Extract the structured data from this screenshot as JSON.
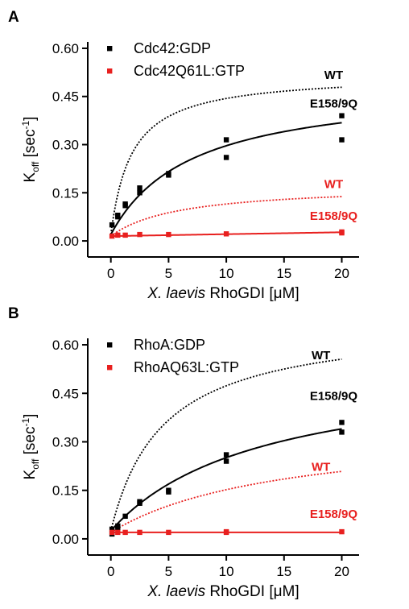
{
  "chart_data": [
    {
      "type": "scatter",
      "panel_label": "A",
      "xlabel_italic": "X. laevis",
      "xlabel_rest": " RhoGDI [",
      "xlabel_unit": "μM",
      "xlabel_close": "]",
      "ylabel_main": "K",
      "ylabel_sub": "off",
      "ylabel_unit_open": " [sec",
      "ylabel_sup": "-1",
      "ylabel_unit_close": "]",
      "xlim": [
        -2,
        21.5
      ],
      "ylim": [
        -0.05,
        0.62
      ],
      "x_ticks": [
        0,
        5,
        10,
        15,
        20
      ],
      "x_tick_labels": [
        "0",
        "5",
        "10",
        "15",
        "20"
      ],
      "y_ticks": [
        0,
        0.15,
        0.3,
        0.45,
        0.6
      ],
      "y_tick_labels": [
        "0.00",
        "0.15",
        "0.30",
        "0.45",
        "0.60"
      ],
      "legend_position": "top-left",
      "series": [
        {
          "name": "Cdc42:GDP",
          "color": "#000000",
          "points": [
            [
              0.1,
              0.05
            ],
            [
              0.6,
              0.075
            ],
            [
              0.6,
              0.08
            ],
            [
              1.25,
              0.11
            ],
            [
              1.25,
              0.115
            ],
            [
              2.5,
              0.15
            ],
            [
              2.5,
              0.165
            ],
            [
              5,
              0.205
            ],
            [
              5,
              0.21
            ],
            [
              10,
              0.26
            ],
            [
              10,
              0.315
            ],
            [
              20,
              0.315
            ],
            [
              20,
              0.39
            ]
          ],
          "fit_e158_9q": {
            "base": 0.02,
            "amp": 0.47,
            "k": 7.0
          },
          "fit_wt": {
            "base": 0.02,
            "amp": 0.5,
            "k": 1.8
          }
        },
        {
          "name": "Cdc42Q61L:GTP",
          "color": "#e8201f",
          "points": [
            [
              0.1,
              0.015
            ],
            [
              0.6,
              0.018
            ],
            [
              1.25,
              0.018
            ],
            [
              2.5,
              0.02
            ],
            [
              5,
              0.02
            ],
            [
              10,
              0.022
            ],
            [
              20,
              0.025
            ],
            [
              20,
              0.028
            ]
          ],
          "fit_e158_9q": {
            "base": 0.015,
            "amp": 0.012,
            "k": 0
          },
          "fit_wt": {
            "base": 0.015,
            "amp": 0.16,
            "k": 6.0
          }
        }
      ],
      "annotations": [
        {
          "text": "WT",
          "color": "#000000",
          "x": 19.3,
          "y": 0.505
        },
        {
          "text": "E158/9Q",
          "color": "#000000",
          "x": 19.3,
          "y": 0.415
        },
        {
          "text": "WT",
          "color": "#e8201f",
          "x": 19.3,
          "y": 0.165
        },
        {
          "text": "E158/9Q",
          "color": "#e8201f",
          "x": 19.3,
          "y": 0.065
        }
      ]
    },
    {
      "type": "scatter",
      "panel_label": "B",
      "xlabel_italic": "X. laevis",
      "xlabel_rest": " RhoGDI [",
      "xlabel_unit": "μM",
      "xlabel_close": "]",
      "ylabel_main": "K",
      "ylabel_sub": "off",
      "ylabel_unit_open": " [sec",
      "ylabel_sup": "-1",
      "ylabel_unit_close": "]",
      "xlim": [
        -2,
        21.5
      ],
      "ylim": [
        -0.05,
        0.62
      ],
      "x_ticks": [
        0,
        5,
        10,
        15,
        20
      ],
      "x_tick_labels": [
        "0",
        "5",
        "10",
        "15",
        "20"
      ],
      "y_ticks": [
        0,
        0.15,
        0.3,
        0.45,
        0.6
      ],
      "y_tick_labels": [
        "0.00",
        "0.15",
        "0.30",
        "0.45",
        "0.60"
      ],
      "legend_position": "top-left",
      "series": [
        {
          "name": "RhoA:GDP",
          "color": "#000000",
          "points": [
            [
              0.1,
              0.015
            ],
            [
              0.1,
              0.03
            ],
            [
              0.6,
              0.035
            ],
            [
              0.6,
              0.04
            ],
            [
              1.25,
              0.07
            ],
            [
              2.5,
              0.11
            ],
            [
              2.5,
              0.115
            ],
            [
              5,
              0.145
            ],
            [
              5,
              0.15
            ],
            [
              10,
              0.24
            ],
            [
              10,
              0.26
            ],
            [
              20,
              0.33
            ],
            [
              20,
              0.36
            ]
          ],
          "fit_e158_9q": {
            "base": 0.025,
            "amp": 0.52,
            "k": 13.0
          },
          "fit_wt": {
            "base": 0.025,
            "amp": 0.65,
            "k": 4.5
          }
        },
        {
          "name": "RhoAQ63L:GTP",
          "color": "#e8201f",
          "points": [
            [
              0.1,
              0.02
            ],
            [
              0.6,
              0.02
            ],
            [
              1.25,
              0.02
            ],
            [
              2.5,
              0.02
            ],
            [
              5,
              0.02
            ],
            [
              10,
              0.02
            ],
            [
              10,
              0.022
            ],
            [
              20,
              0.022
            ]
          ],
          "fit_e158_9q": {
            "base": 0.02,
            "amp": 0.0,
            "k": 0
          },
          "fit_wt": {
            "base": 0.02,
            "amp": 0.33,
            "k": 15.0
          }
        }
      ],
      "annotations": [
        {
          "text": "WT",
          "color": "#000000",
          "x": 18.2,
          "y": 0.555
        },
        {
          "text": "E158/9Q",
          "color": "#000000",
          "x": 19.3,
          "y": 0.43
        },
        {
          "text": "WT",
          "color": "#e8201f",
          "x": 18.2,
          "y": 0.21
        },
        {
          "text": "E158/9Q",
          "color": "#e8201f",
          "x": 19.3,
          "y": 0.065
        }
      ]
    }
  ]
}
